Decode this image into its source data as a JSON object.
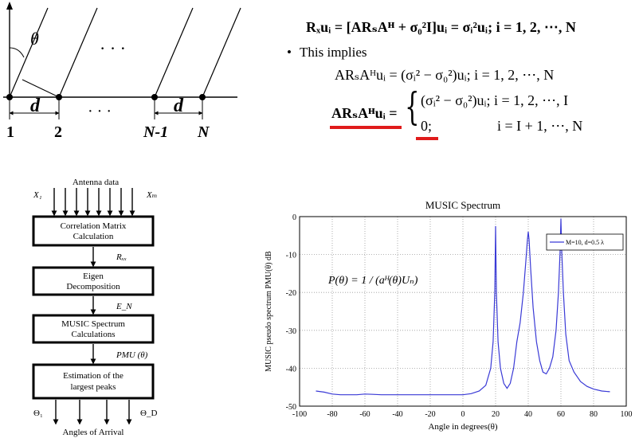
{
  "array_diagram": {
    "theta": "θ",
    "d_left": "d",
    "d_right": "d",
    "dots_top": "· · ·",
    "dots_bottom": "· · ·",
    "labels": [
      "1",
      "2",
      "N-1",
      "N"
    ]
  },
  "equations": {
    "line1_lhs": "R",
    "line1_text": "Rₓuᵢ = [ARₛAᴴ + σ₀²I]uᵢ = σᵢ²uᵢ;   i = 1, 2, ⋯, N",
    "bullet": "•",
    "bullet_text": "This implies",
    "line2_text": "ARₛAᴴuᵢ = (σᵢ² − σ₀²)uᵢ;   i = 1, 2, ⋯, N",
    "line3_lhs": "ARₛAᴴuᵢ =",
    "line3_case1": "(σᵢ² − σ₀²)uᵢ;   i = 1, 2, ⋯, I",
    "line3_case2_val": "0;",
    "line3_case2_range": "i = I + 1, ⋯, N"
  },
  "flowchart": {
    "antenna_label": "Antenna data",
    "x1": "X₁",
    "xm": "Xₘ",
    "box1": [
      "Correlation Matrix",
      "Calculation"
    ],
    "arrow1": "Rₓₓ",
    "box2": [
      "Eigen",
      "Decomposition"
    ],
    "arrow2": "E_N",
    "box3": [
      "MUSIC Spectrum",
      "Calculations"
    ],
    "arrow3": "PMU (θ)",
    "box4": [
      "Estimation of the",
      "largest peaks"
    ],
    "theta1": "Θ₁",
    "thetad": "Θ_D",
    "aoa_label": "Angles of Arrival"
  },
  "chart_data": {
    "type": "line",
    "title": "MUSIC Spectrum",
    "xlabel": "Angle in degrees(θ)",
    "ylabel": "MUSIC pseudo spectrum PMU(θ) dB",
    "xlim": [
      -100,
      100
    ],
    "ylim": [
      -50,
      0
    ],
    "xticks": [
      -100,
      -80,
      -60,
      -40,
      -20,
      0,
      20,
      40,
      60,
      80,
      100
    ],
    "yticks": [
      0,
      -10,
      -20,
      -30,
      -40,
      -50
    ],
    "grid": true,
    "legend_position": "top-right",
    "annotation": "P(θ) = 1 / (aᴴ(θ)Uₙ)",
    "series": [
      {
        "name": "M=10, d=0.5 λ",
        "color": "#3a3ad6",
        "x": [
          -90,
          -85,
          -80,
          -75,
          -70,
          -65,
          -60,
          -55,
          -50,
          -45,
          -40,
          -35,
          -30,
          -25,
          -20,
          -15,
          -10,
          -5,
          0,
          5,
          10,
          14,
          17,
          18.5,
          19.5,
          20,
          20.5,
          21.5,
          23,
          25,
          27,
          29,
          31,
          33,
          35,
          37,
          38.5,
          39.5,
          40,
          40.5,
          41.5,
          43,
          45,
          47,
          49,
          51,
          53,
          55,
          57,
          58.5,
          59.5,
          60,
          60.5,
          61.5,
          63,
          65,
          68,
          72,
          76,
          80,
          85,
          90
        ],
        "y": [
          -46,
          -46.3,
          -46.8,
          -47,
          -47,
          -47,
          -46.8,
          -46.9,
          -47,
          -47,
          -47,
          -47,
          -47,
          -47,
          -47,
          -47,
          -47,
          -47,
          -47,
          -46.7,
          -46,
          -44.5,
          -40,
          -33,
          -20,
          -2.5,
          -20,
          -33,
          -40,
          -44,
          -45.3,
          -44,
          -40,
          -33,
          -28,
          -20,
          -12,
          -6,
          -4,
          -6,
          -14,
          -24,
          -33,
          -38,
          -41,
          -41.5,
          -40,
          -37,
          -30,
          -20,
          -9,
          -0.5,
          -9,
          -20,
          -31,
          -38,
          -41,
          -43.5,
          -44.8,
          -45.5,
          -46,
          -46.2
        ]
      }
    ]
  }
}
